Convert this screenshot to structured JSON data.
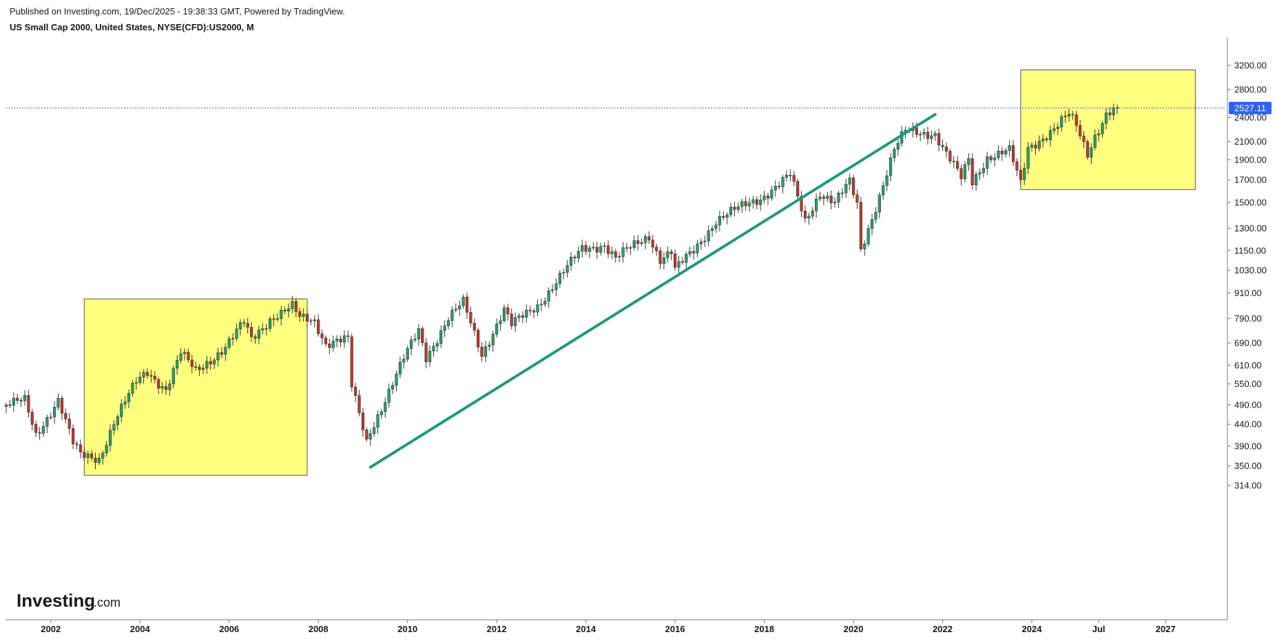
{
  "header": {
    "published": "Published on Investing.com, 19/Dec/2025 - 19:38:33 GMT, Powered by TradingView.",
    "symbol": "US Small Cap 2000, United States, NYSE(CFD):US2000, M"
  },
  "logo": {
    "main": "Investing",
    "domain": ".com"
  },
  "colors": {
    "up": "#26a269",
    "down": "#c0392b",
    "trendline": "#1a9b7b",
    "highlight": "#ffff80",
    "price_line": "#2962ff",
    "price_label_bg": "#2962ff"
  },
  "chart_data": {
    "type": "candlestick",
    "interval": "M",
    "scale": "log",
    "y_ticks": [
      "3200.00",
      "2800.00",
      "2400.00",
      "2100.00",
      "1900.00",
      "1700.00",
      "1500.00",
      "1300.00",
      "1150.00",
      "1030.00",
      "910.00",
      "790.00",
      "690.00",
      "610.00",
      "550.00",
      "490.00",
      "440.00",
      "390.00",
      "350.00",
      "314.00"
    ],
    "x_ticks": [
      "2002",
      "2004",
      "2006",
      "2008",
      "2010",
      "2012",
      "2014",
      "2016",
      "2018",
      "2020",
      "2022",
      "2024",
      "Jul",
      "2027"
    ],
    "last_price": "2527.11",
    "trendline": {
      "from": {
        "date": "2009-03",
        "value": 347
      },
      "to": {
        "date": "2021-11",
        "value": 2440
      }
    },
    "highlight_zones": [
      {
        "from": "2002-10",
        "to": "2007-10",
        "low": 332,
        "high": 880
      },
      {
        "from": "2023-10",
        "to": "2027-09",
        "low": 1610,
        "high": 3120
      }
    ],
    "close_anchors": [
      [
        "2001-01",
        490
      ],
      [
        "2001-06",
        500
      ],
      [
        "2001-09",
        415
      ],
      [
        "2002-03",
        505
      ],
      [
        "2002-07",
        395
      ],
      [
        "2002-09",
        370
      ],
      [
        "2003-02",
        365
      ],
      [
        "2003-06",
        445
      ],
      [
        "2003-12",
        555
      ],
      [
        "2004-03",
        590
      ],
      [
        "2004-08",
        535
      ],
      [
        "2004-12",
        650
      ],
      [
        "2005-04",
        590
      ],
      [
        "2005-12",
        675
      ],
      [
        "2006-05",
        770
      ],
      [
        "2006-07",
        705
      ],
      [
        "2006-12",
        790
      ],
      [
        "2007-06",
        840
      ],
      [
        "2007-08",
        790
      ],
      [
        "2007-12",
        780
      ],
      [
        "2008-03",
        690
      ],
      [
        "2008-06",
        700
      ],
      [
        "2008-09",
        700
      ],
      [
        "2008-10",
        540
      ],
      [
        "2009-02",
        400
      ],
      [
        "2009-03",
        425
      ],
      [
        "2009-12",
        630
      ],
      [
        "2010-04",
        740
      ],
      [
        "2010-06",
        640
      ],
      [
        "2010-12",
        790
      ],
      [
        "2011-04",
        860
      ],
      [
        "2011-09",
        650
      ],
      [
        "2012-03",
        830
      ],
      [
        "2012-05",
        760
      ],
      [
        "2012-12",
        850
      ],
      [
        "2013-12",
        1160
      ],
      [
        "2014-06",
        1190
      ],
      [
        "2014-09",
        1100
      ],
      [
        "2015-06",
        1250
      ],
      [
        "2015-09",
        1100
      ],
      [
        "2015-12",
        1140
      ],
      [
        "2016-01",
        1030
      ],
      [
        "2016-06",
        1150
      ],
      [
        "2016-12",
        1360
      ],
      [
        "2017-12",
        1540
      ],
      [
        "2018-08",
        1740
      ],
      [
        "2018-12",
        1350
      ],
      [
        "2019-04",
        1590
      ],
      [
        "2019-08",
        1500
      ],
      [
        "2019-12",
        1670
      ],
      [
        "2020-02",
        1480
      ],
      [
        "2020-03",
        1150
      ],
      [
        "2020-12",
        2000
      ],
      [
        "2021-03",
        2220
      ],
      [
        "2021-11",
        2200
      ],
      [
        "2022-01",
        2030
      ],
      [
        "2022-06",
        1710
      ],
      [
        "2022-08",
        1900
      ],
      [
        "2022-09",
        1680
      ],
      [
        "2023-01",
        1930
      ],
      [
        "2023-07",
        1990
      ],
      [
        "2023-10",
        1660
      ],
      [
        "2023-12",
        2030
      ],
      [
        "2024-07",
        2250
      ],
      [
        "2024-11",
        2430
      ],
      [
        "2025-01",
        2290
      ],
      [
        "2025-04",
        1970
      ],
      [
        "2025-06",
        2180
      ],
      [
        "2025-09",
        2440
      ],
      [
        "2025-12",
        2527
      ]
    ]
  }
}
